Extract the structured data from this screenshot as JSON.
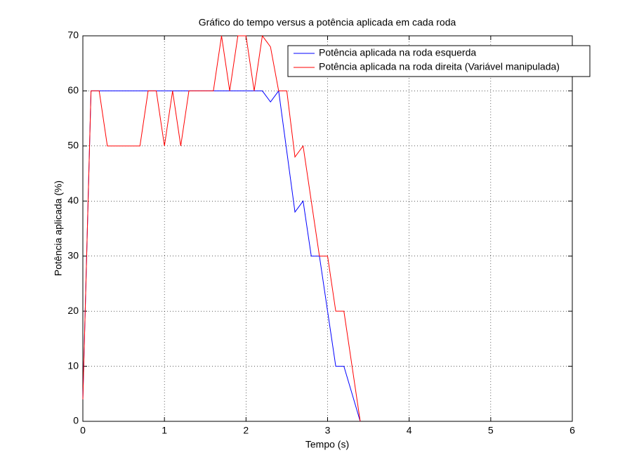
{
  "chart_data": {
    "type": "line",
    "title": "Gráfico do tempo versus a potência aplicada em cada roda",
    "x_label": "Tempo (s)",
    "y_label": "Potência aplicada (%)",
    "x": [
      0,
      0.1,
      0.2,
      0.3,
      0.4,
      0.5,
      0.6,
      0.7,
      0.8,
      0.9,
      1.0,
      1.1,
      1.2,
      1.3,
      1.4,
      1.5,
      1.6,
      1.7,
      1.8,
      1.9,
      2.0,
      2.1,
      2.2,
      2.3,
      2.4,
      2.5,
      2.6,
      2.7,
      2.8,
      2.9,
      3.0,
      3.1,
      3.2,
      3.3,
      3.4
    ],
    "series": [
      {
        "name": "Potência aplicada na roda esquerda",
        "color": "#0000ff",
        "values": [
          4,
          60,
          60,
          60,
          60,
          60,
          60,
          60,
          60,
          60,
          60,
          60,
          60,
          60,
          60,
          60,
          60,
          60,
          60,
          60,
          60,
          60,
          60,
          58,
          60,
          49,
          38,
          40,
          30,
          30,
          20,
          10,
          10,
          5,
          0
        ]
      },
      {
        "name": "Potência aplicada na roda direita (Variável manipulada)",
        "color": "#ff0000",
        "values": [
          4,
          60,
          60,
          50,
          50,
          50,
          50,
          50,
          60,
          60,
          50,
          60,
          50,
          60,
          60,
          60,
          60,
          70,
          60,
          70,
          70,
          60,
          70,
          68,
          60,
          60,
          48,
          50,
          40,
          30,
          30,
          20,
          20,
          10,
          0
        ]
      }
    ],
    "xlim": [
      0,
      6
    ],
    "xticks": [
      0,
      1,
      2,
      3,
      4,
      5,
      6
    ],
    "ylim": [
      0,
      70
    ],
    "yticks": [
      0,
      10,
      20,
      30,
      40,
      50,
      60,
      70
    ],
    "grid": true,
    "legend": "upper-right"
  }
}
